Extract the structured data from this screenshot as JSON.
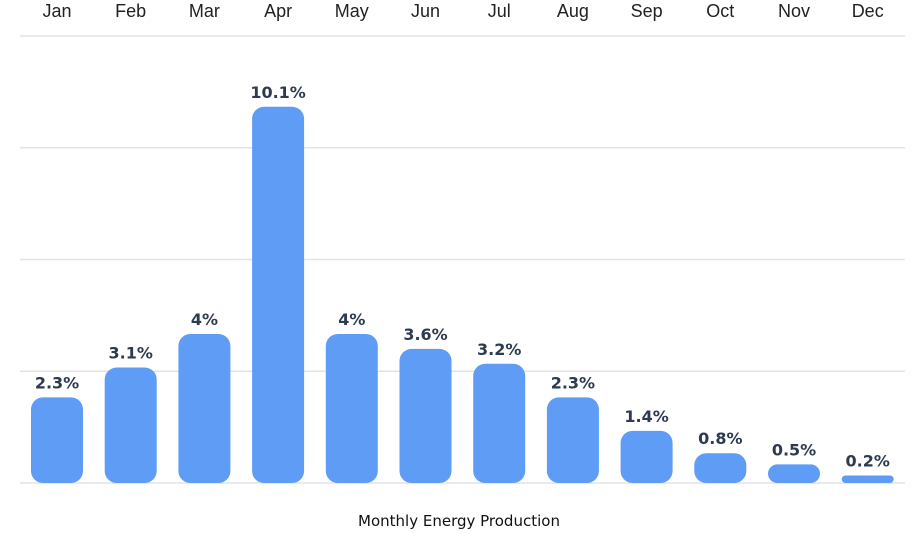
{
  "chart_data": {
    "type": "bar",
    "title": "",
    "xlabel": "Monthly Energy Production",
    "ylabel": "",
    "categories": [
      "Jan",
      "Feb",
      "Mar",
      "Apr",
      "May",
      "Jun",
      "Jul",
      "Aug",
      "Sep",
      "Oct",
      "Nov",
      "Dec"
    ],
    "values": [
      2.3,
      3.1,
      4,
      10.1,
      4,
      3.6,
      3.2,
      2.3,
      1.4,
      0.8,
      0.5,
      0.2
    ],
    "value_labels": [
      "2.3%",
      "3.1%",
      "4%",
      "10.1%",
      "4%",
      "3.6%",
      "3.2%",
      "2.3%",
      "1.4%",
      "0.8%",
      "0.5%",
      "0.2%"
    ],
    "ylim": [
      0,
      12
    ],
    "gridlines": [
      0,
      3,
      6,
      9,
      12
    ],
    "grid": true,
    "category_axis_position": "top",
    "bar_color": "#5e9cf5"
  }
}
